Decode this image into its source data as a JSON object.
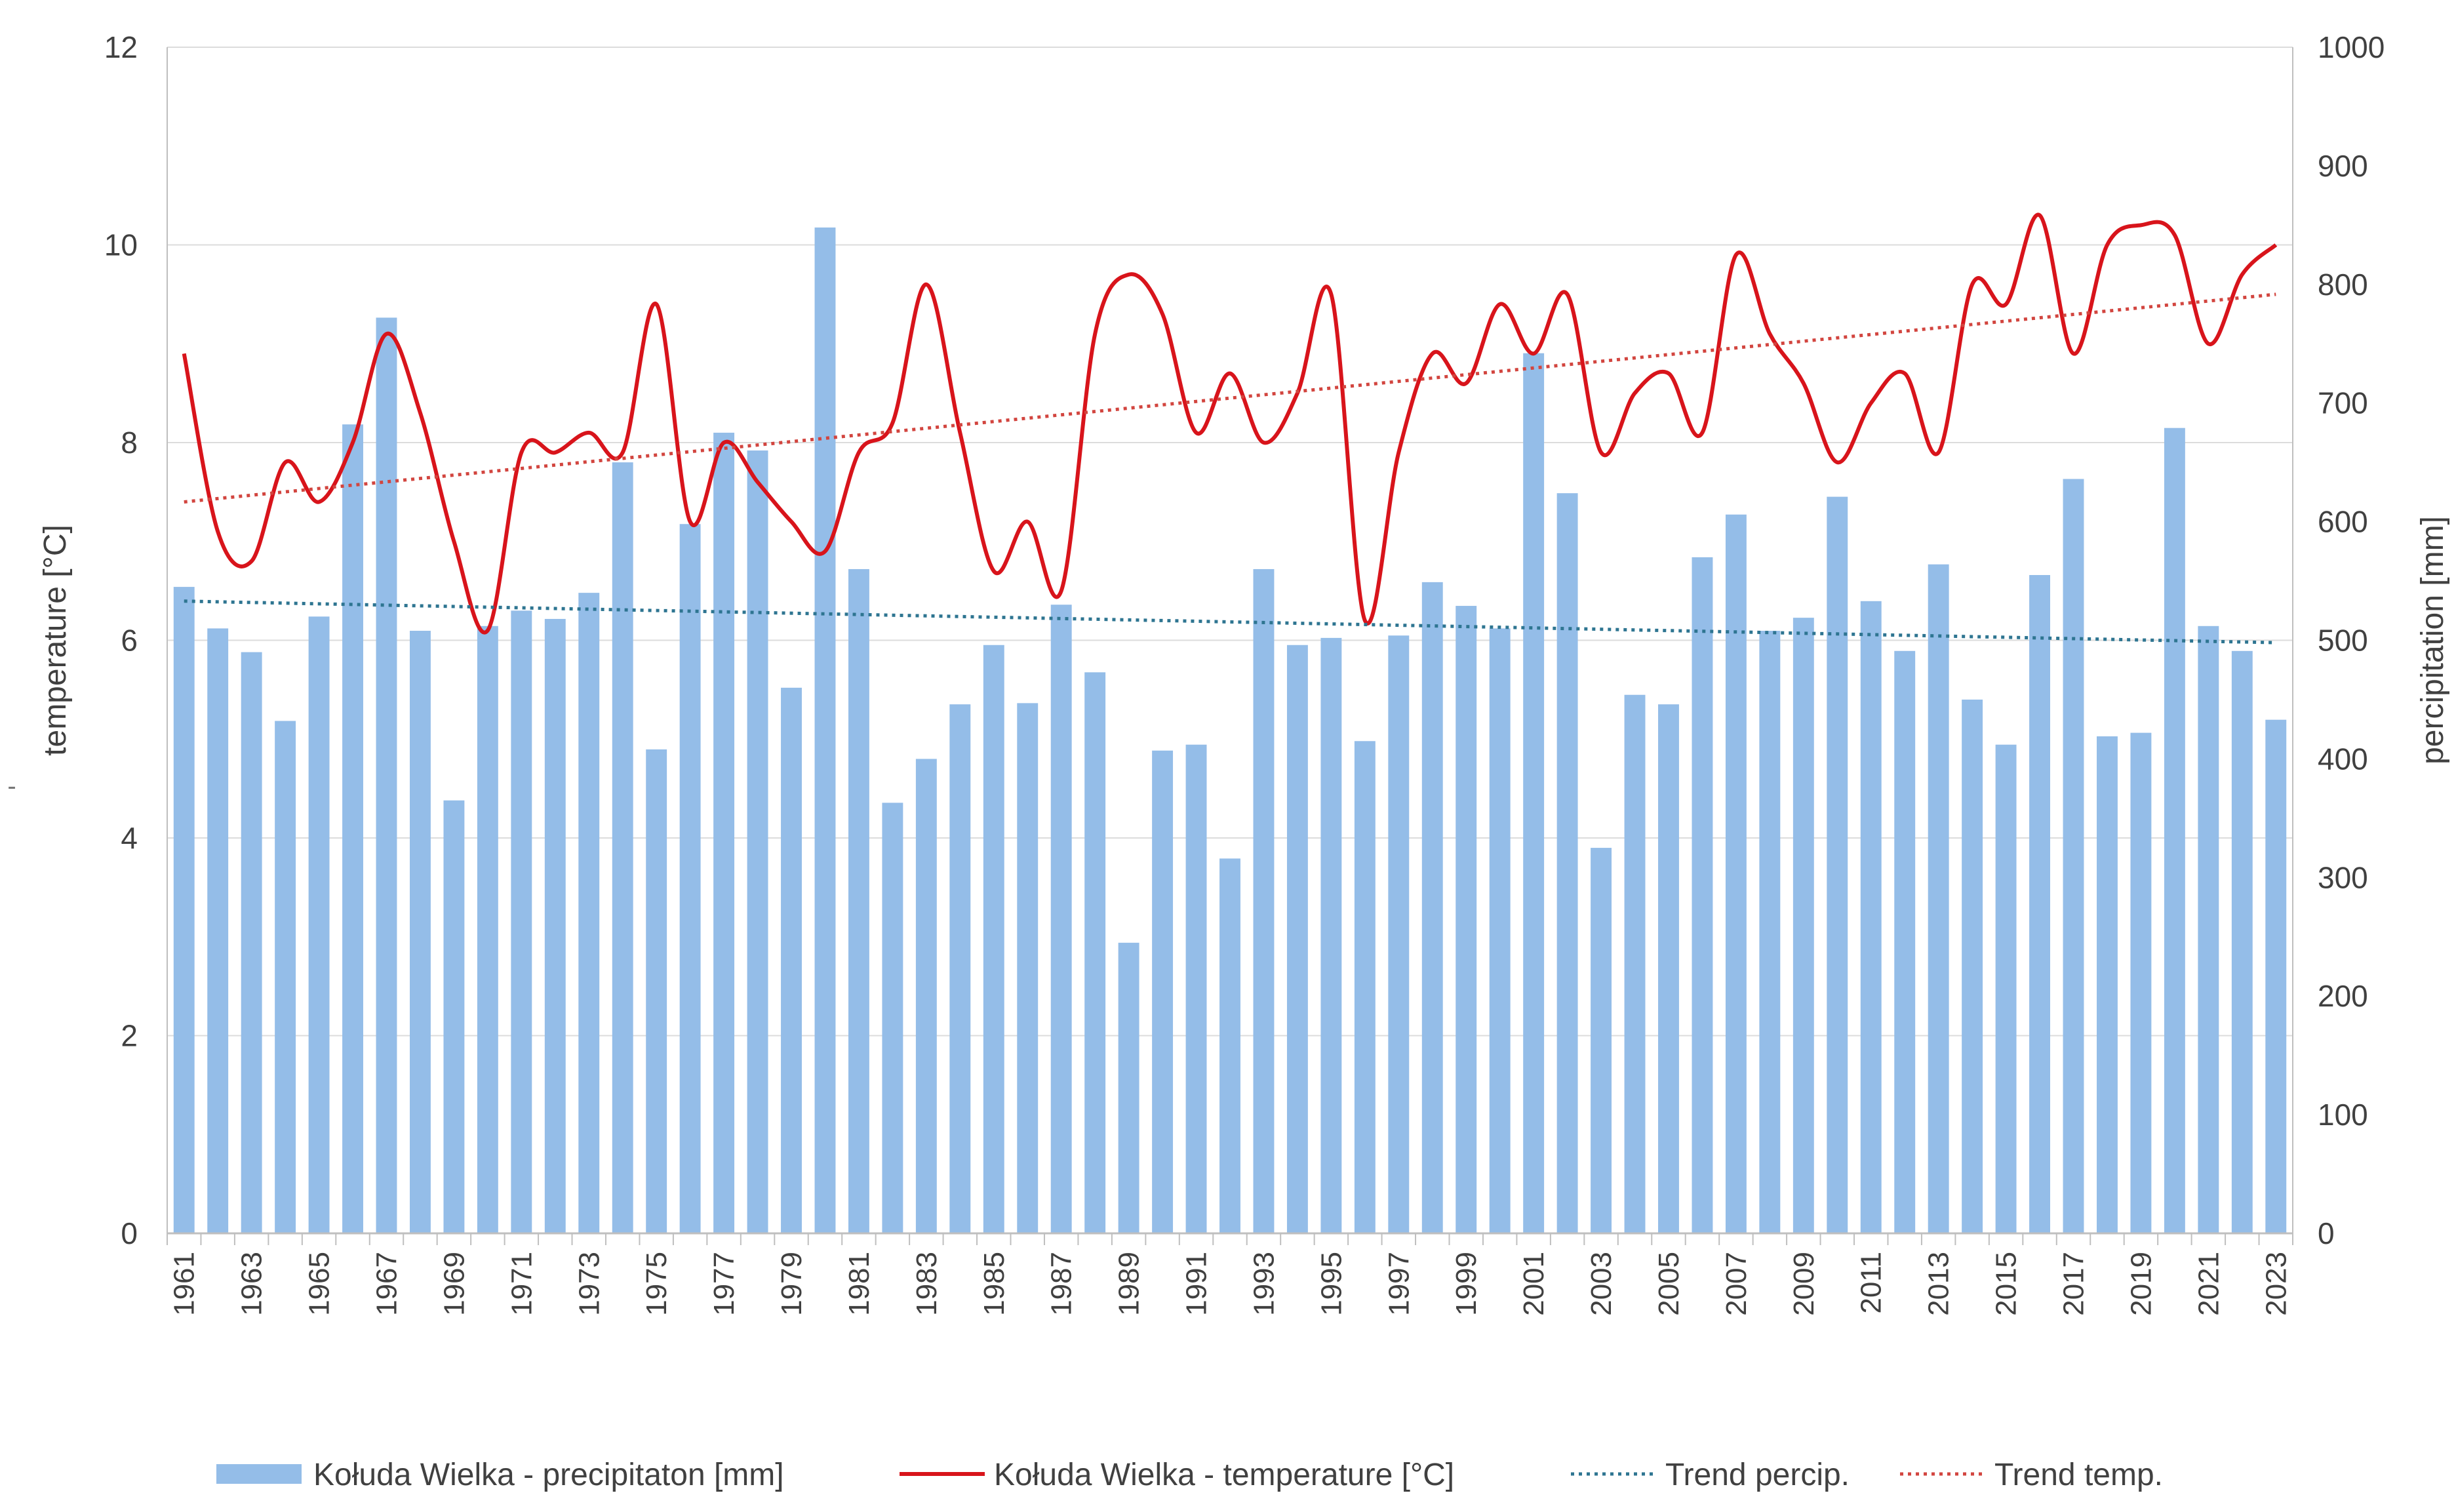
{
  "chart_data": {
    "type": "bar+line",
    "title": "",
    "years": [
      1961,
      1962,
      1963,
      1964,
      1965,
      1966,
      1967,
      1968,
      1969,
      1970,
      1971,
      1972,
      1973,
      1974,
      1975,
      1976,
      1977,
      1978,
      1979,
      1980,
      1981,
      1982,
      1983,
      1984,
      1985,
      1986,
      1987,
      1988,
      1989,
      1990,
      1991,
      1992,
      1993,
      1994,
      1995,
      1996,
      1997,
      1998,
      1999,
      2000,
      2001,
      2002,
      2003,
      2004,
      2005,
      2006,
      2007,
      2008,
      2009,
      2010,
      2011,
      2012,
      2013,
      2014,
      2015,
      2016,
      2017,
      2018,
      2019,
      2020,
      2021,
      2022,
      2023
    ],
    "x_tick_labels": [
      "1961",
      "1963",
      "1965",
      "1967",
      "1969",
      "1971",
      "1973",
      "1975",
      "1977",
      "1979",
      "1981",
      "1983",
      "1985",
      "1987",
      "1989",
      "1991",
      "1993",
      "1995",
      "1997",
      "1999",
      "2001",
      "2003",
      "2005",
      "2007",
      "2009",
      "2011",
      "2013",
      "2015",
      "2017",
      "2019",
      "2021",
      "2023"
    ],
    "precipitation_mm": [
      545,
      510,
      490,
      432,
      520,
      682,
      772,
      508,
      365,
      512,
      525,
      518,
      540,
      650,
      408,
      598,
      675,
      660,
      460,
      848,
      560,
      363,
      400,
      446,
      496,
      447,
      530,
      473,
      245,
      407,
      412,
      316,
      560,
      496,
      502,
      415,
      504,
      549,
      529,
      510,
      742,
      624,
      325,
      454,
      446,
      570,
      606,
      508,
      519,
      621,
      533,
      491,
      564,
      450,
      412,
      555,
      636,
      419,
      422,
      679,
      512,
      491,
      433
    ],
    "temperature_c": [
      8.9,
      7.1,
      6.8,
      7.8,
      7.4,
      8.0,
      9.1,
      8.3,
      7.0,
      6.1,
      7.9,
      7.9,
      8.1,
      7.9,
      9.4,
      7.2,
      8.0,
      7.6,
      7.2,
      6.9,
      7.9,
      8.2,
      9.6,
      8.1,
      6.7,
      7.2,
      6.5,
      9.1,
      9.7,
      9.3,
      8.1,
      8.7,
      8.0,
      8.5,
      9.5,
      6.2,
      7.9,
      8.9,
      8.6,
      9.4,
      8.9,
      9.5,
      7.9,
      8.5,
      8.7,
      8.1,
      9.9,
      9.1,
      8.6,
      7.8,
      8.4,
      8.7,
      7.9,
      9.6,
      9.4,
      10.3,
      8.9,
      10.0,
      10.2,
      10.1,
      9.0,
      9.7,
      10.0
    ],
    "trend_precip": {
      "start": 533,
      "end": 498
    },
    "trend_temp": {
      "start": 7.4,
      "end": 9.5
    },
    "y_left": {
      "label": "temperature [°C]",
      "min": 0,
      "max": 12,
      "ticks": [
        "0",
        "2",
        "4",
        "6",
        "8",
        "10",
        "12"
      ]
    },
    "y_right": {
      "label": "percipitation [mm]",
      "min": 0,
      "max": 1000,
      "ticks": [
        "0",
        "100",
        "200",
        "300",
        "400",
        "500",
        "600",
        "700",
        "800",
        "900",
        "1000"
      ]
    },
    "legend": {
      "position": "bottom",
      "entries": [
        "Kołuda Wielka - precipitaton [mm]",
        "Kołuda Wielka - temperature [°C]",
        "Trend percip.",
        "Trend temp."
      ]
    },
    "stray_mark": "-",
    "colors": {
      "bar": "#94bde8",
      "temperature": "#d8141b",
      "trend_precip": "#2e7591",
      "trend_temp": "#d2453f",
      "grid": "#dcdcdc",
      "axis": "#bfbfbf",
      "text": "#404040"
    }
  }
}
